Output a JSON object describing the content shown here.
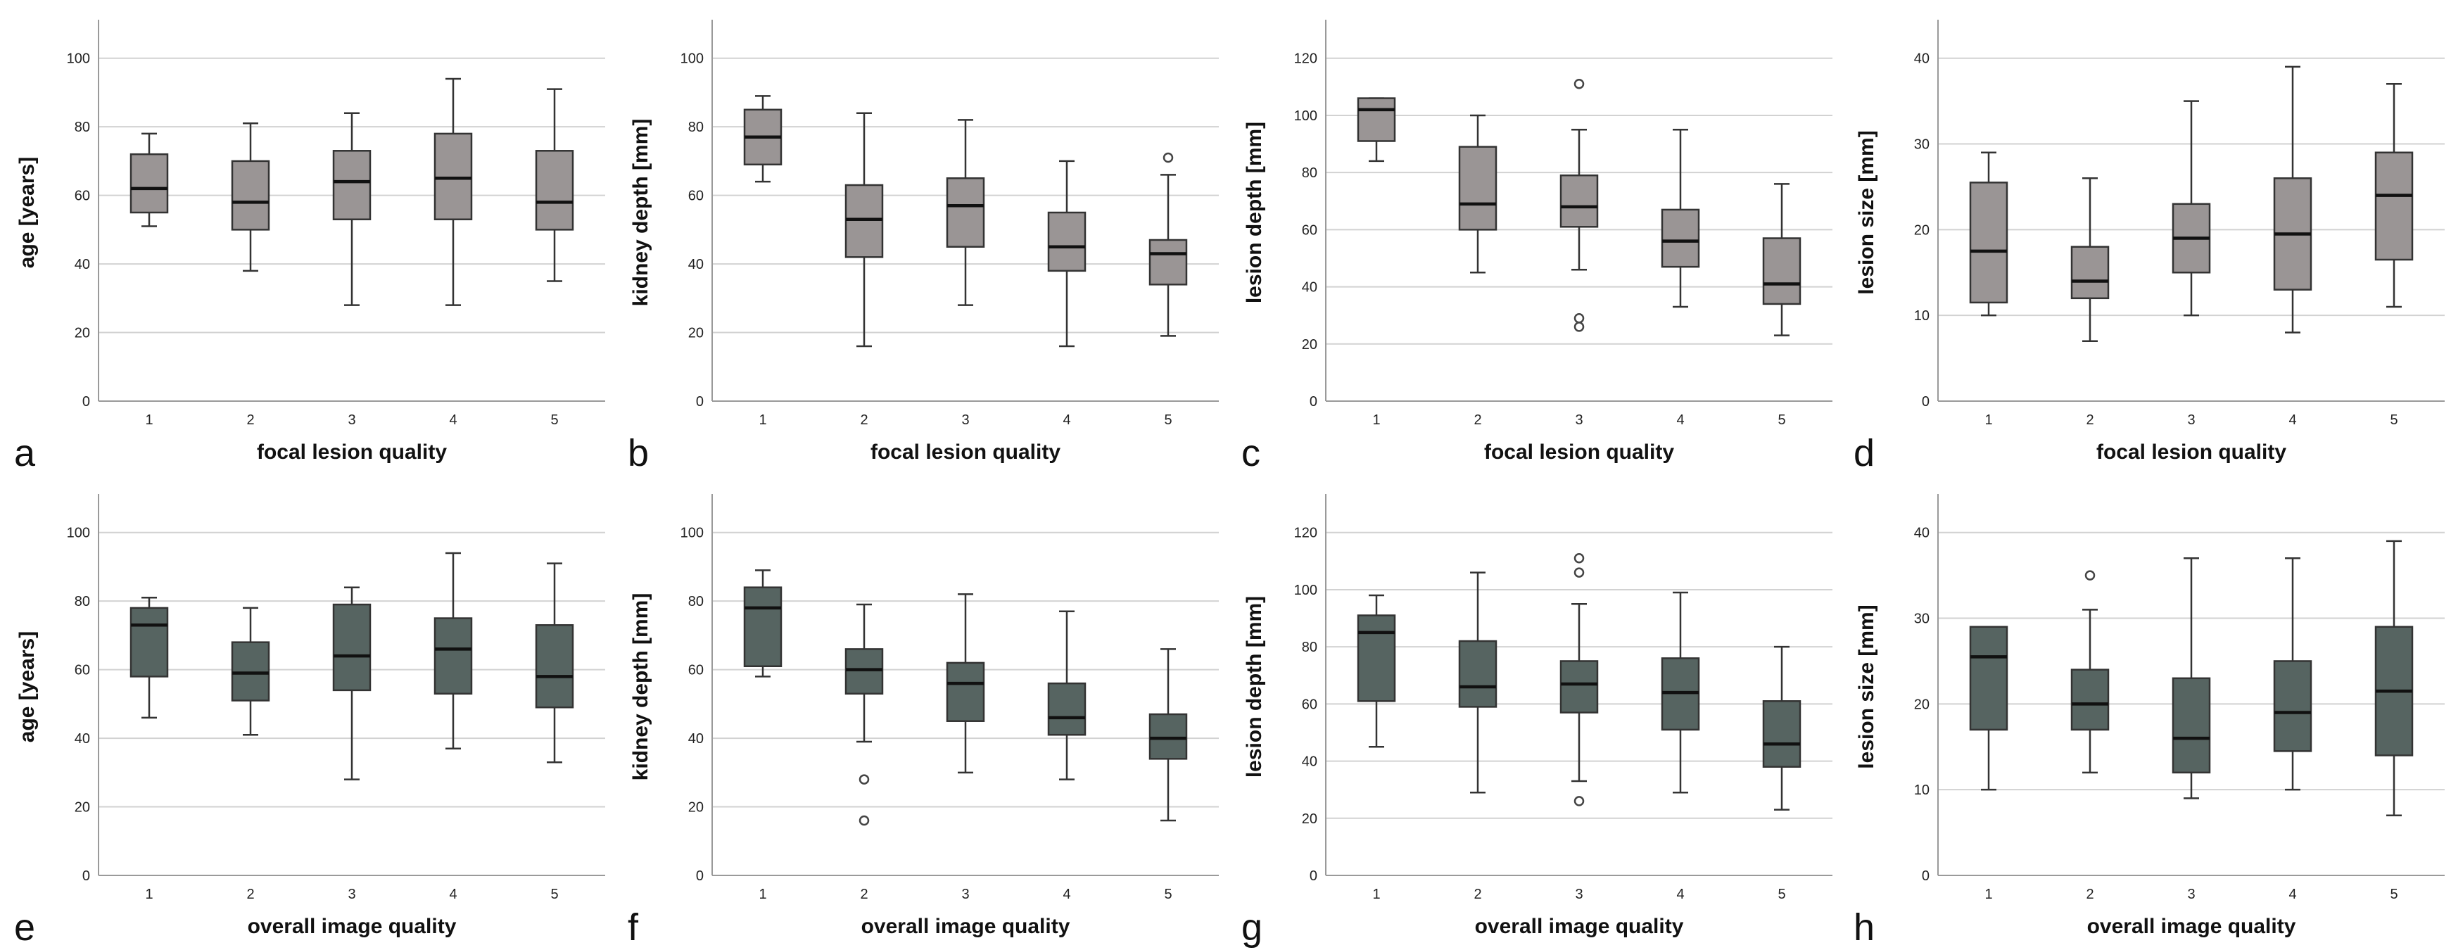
{
  "colors": {
    "row1_box": "#9a9595",
    "row2_box": "#566461",
    "grid": "#d2d2d2"
  },
  "chart_data": [
    {
      "type": "boxplot",
      "panel": "a",
      "xlabel": "focal lesion quality",
      "ylabel": "age [years]",
      "categories": [
        "1",
        "2",
        "3",
        "4",
        "5"
      ],
      "ylim": [
        0,
        110
      ],
      "yticks": [
        0,
        20,
        40,
        60,
        80,
        100
      ],
      "boxes": [
        {
          "min": 51,
          "q1": 55,
          "median": 62,
          "q3": 72,
          "max": 78,
          "outliers": []
        },
        {
          "min": 38,
          "q1": 50,
          "median": 58,
          "q3": 70,
          "max": 81,
          "outliers": []
        },
        {
          "min": 28,
          "q1": 53,
          "median": 64,
          "q3": 73,
          "max": 84,
          "outliers": []
        },
        {
          "min": 28,
          "q1": 53,
          "median": 65,
          "q3": 78,
          "max": 94,
          "outliers": []
        },
        {
          "min": 35,
          "q1": 50,
          "median": 58,
          "q3": 73,
          "max": 91,
          "outliers": []
        }
      ]
    },
    {
      "type": "boxplot",
      "panel": "b",
      "xlabel": "focal lesion quality",
      "ylabel": "kidney depth [mm]",
      "categories": [
        "1",
        "2",
        "3",
        "4",
        "5"
      ],
      "ylim": [
        0,
        110
      ],
      "yticks": [
        0,
        20,
        40,
        60,
        80,
        100
      ],
      "boxes": [
        {
          "min": 64,
          "q1": 69,
          "median": 77,
          "q3": 85,
          "max": 89,
          "outliers": []
        },
        {
          "min": 16,
          "q1": 42,
          "median": 53,
          "q3": 63,
          "max": 84,
          "outliers": []
        },
        {
          "min": 28,
          "q1": 45,
          "median": 57,
          "q3": 65,
          "max": 82,
          "outliers": []
        },
        {
          "min": 16,
          "q1": 38,
          "median": 45,
          "q3": 55,
          "max": 70,
          "outliers": []
        },
        {
          "min": 19,
          "q1": 34,
          "median": 43,
          "q3": 47,
          "max": 66,
          "outliers": [
            71
          ]
        }
      ]
    },
    {
      "type": "boxplot",
      "panel": "c",
      "xlabel": "focal lesion quality",
      "ylabel": "lesion depth [mm]",
      "categories": [
        "1",
        "2",
        "3",
        "4",
        "5"
      ],
      "ylim": [
        0,
        132
      ],
      "yticks": [
        0,
        20,
        40,
        60,
        80,
        100,
        120
      ],
      "boxes": [
        {
          "min": 84,
          "q1": 91,
          "median": 102,
          "q3": 106,
          "max": 106,
          "outliers": []
        },
        {
          "min": 45,
          "q1": 60,
          "median": 69,
          "q3": 89,
          "max": 100,
          "outliers": []
        },
        {
          "min": 46,
          "q1": 61,
          "median": 68,
          "q3": 79,
          "max": 95,
          "outliers": [
            111,
            29,
            26
          ]
        },
        {
          "min": 33,
          "q1": 47,
          "median": 56,
          "q3": 67,
          "max": 95,
          "outliers": []
        },
        {
          "min": 23,
          "q1": 34,
          "median": 41,
          "q3": 57,
          "max": 76,
          "outliers": []
        }
      ]
    },
    {
      "type": "boxplot",
      "panel": "d",
      "xlabel": "focal lesion quality",
      "ylabel": "lesion size [mm]",
      "categories": [
        "1",
        "2",
        "3",
        "4",
        "5"
      ],
      "ylim": [
        0,
        44
      ],
      "yticks": [
        0,
        10,
        20,
        30,
        40
      ],
      "boxes": [
        {
          "min": 10,
          "q1": 11.5,
          "median": 17.5,
          "q3": 25.5,
          "max": 29,
          "outliers": []
        },
        {
          "min": 7,
          "q1": 12,
          "median": 14,
          "q3": 18,
          "max": 26,
          "outliers": []
        },
        {
          "min": 10,
          "q1": 15,
          "median": 19,
          "q3": 23,
          "max": 35,
          "outliers": []
        },
        {
          "min": 8,
          "q1": 13,
          "median": 19.5,
          "q3": 26,
          "max": 39,
          "outliers": []
        },
        {
          "min": 11,
          "q1": 16.5,
          "median": 24,
          "q3": 29,
          "max": 37,
          "outliers": []
        }
      ]
    },
    {
      "type": "boxplot",
      "panel": "e",
      "xlabel": "overall image quality",
      "ylabel": "age [years]",
      "categories": [
        "1",
        "2",
        "3",
        "4",
        "5"
      ],
      "ylim": [
        0,
        110
      ],
      "yticks": [
        0,
        20,
        40,
        60,
        80,
        100
      ],
      "boxes": [
        {
          "min": 46,
          "q1": 58,
          "median": 73,
          "q3": 78,
          "max": 81,
          "outliers": []
        },
        {
          "min": 41,
          "q1": 51,
          "median": 59,
          "q3": 68,
          "max": 78,
          "outliers": []
        },
        {
          "min": 28,
          "q1": 54,
          "median": 64,
          "q3": 79,
          "max": 84,
          "outliers": []
        },
        {
          "min": 37,
          "q1": 53,
          "median": 66,
          "q3": 75,
          "max": 94,
          "outliers": []
        },
        {
          "min": 33,
          "q1": 49,
          "median": 58,
          "q3": 73,
          "max": 91,
          "outliers": []
        }
      ]
    },
    {
      "type": "boxplot",
      "panel": "f",
      "xlabel": "overall image quality",
      "ylabel": "kidney depth [mm]",
      "categories": [
        "1",
        "2",
        "3",
        "4",
        "5"
      ],
      "ylim": [
        0,
        110
      ],
      "yticks": [
        0,
        20,
        40,
        60,
        80,
        100
      ],
      "boxes": [
        {
          "min": 58,
          "q1": 61,
          "median": 78,
          "q3": 84,
          "max": 89,
          "outliers": []
        },
        {
          "min": 39,
          "q1": 53,
          "median": 60,
          "q3": 66,
          "max": 79,
          "outliers": [
            28,
            16
          ]
        },
        {
          "min": 30,
          "q1": 45,
          "median": 56,
          "q3": 62,
          "max": 82,
          "outliers": []
        },
        {
          "min": 28,
          "q1": 41,
          "median": 46,
          "q3": 56,
          "max": 77,
          "outliers": []
        },
        {
          "min": 16,
          "q1": 34,
          "median": 40,
          "q3": 47,
          "max": 66,
          "outliers": []
        }
      ]
    },
    {
      "type": "boxplot",
      "panel": "g",
      "xlabel": "overall image quality",
      "ylabel": "lesion depth [mm]",
      "categories": [
        "1",
        "2",
        "3",
        "4",
        "5"
      ],
      "ylim": [
        0,
        132
      ],
      "yticks": [
        0,
        20,
        40,
        60,
        80,
        100,
        120
      ],
      "boxes": [
        {
          "min": 45,
          "q1": 61,
          "median": 85,
          "q3": 91,
          "max": 98,
          "outliers": []
        },
        {
          "min": 29,
          "q1": 59,
          "median": 66,
          "q3": 82,
          "max": 106,
          "outliers": []
        },
        {
          "min": 33,
          "q1": 57,
          "median": 67,
          "q3": 75,
          "max": 95,
          "outliers": [
            111,
            106,
            26
          ]
        },
        {
          "min": 29,
          "q1": 51,
          "median": 64,
          "q3": 76,
          "max": 99,
          "outliers": []
        },
        {
          "min": 23,
          "q1": 38,
          "median": 46,
          "q3": 61,
          "max": 80,
          "outliers": []
        }
      ]
    },
    {
      "type": "boxplot",
      "panel": "h",
      "xlabel": "overall image quality",
      "ylabel": "lesion size [mm]",
      "categories": [
        "1",
        "2",
        "3",
        "4",
        "5"
      ],
      "ylim": [
        0,
        44
      ],
      "yticks": [
        0,
        10,
        20,
        30,
        40
      ],
      "boxes": [
        {
          "min": 10,
          "q1": 17,
          "median": 25.5,
          "q3": 29,
          "max": 29,
          "outliers": []
        },
        {
          "min": 12,
          "q1": 17,
          "median": 20,
          "q3": 24,
          "max": 31,
          "outliers": [
            35
          ]
        },
        {
          "min": 9,
          "q1": 12,
          "median": 16,
          "q3": 23,
          "max": 37,
          "outliers": []
        },
        {
          "min": 10,
          "q1": 14.5,
          "median": 19,
          "q3": 25,
          "max": 37,
          "outliers": []
        },
        {
          "min": 7,
          "q1": 14,
          "median": 21.5,
          "q3": 29,
          "max": 39,
          "outliers": []
        }
      ]
    }
  ]
}
